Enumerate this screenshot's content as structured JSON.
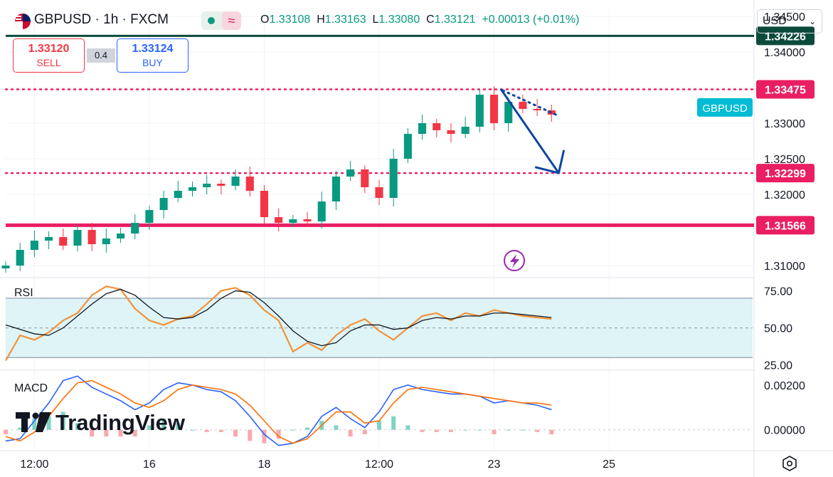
{
  "header": {
    "symbol_title": "GBPUSD · 1h · FXCM",
    "open_label": "O",
    "open": "1.33108",
    "high_label": "H",
    "high": "1.33163",
    "low_label": "L",
    "low": "1.33080",
    "close_label": "C",
    "close": "1.33121",
    "change": "+0.00013 (+0.01%)",
    "flag_icon": "uk-us-flag-icon",
    "market_status_icon": "market-open-dot-icon",
    "indicator_icon": "wave-icon"
  },
  "trade": {
    "sell_price": "1.33120",
    "sell_label": "SELL",
    "spread": "0.4",
    "buy_price": "1.33124",
    "buy_label": "BUY"
  },
  "currency": {
    "value": "USD",
    "icon": "chevron-down-icon"
  },
  "colors": {
    "up": "#089981",
    "down": "#f23645",
    "dark_line": "#0b4a3a",
    "resistance": "#e91e63",
    "arrow": "#0d47a1",
    "rsi_line": "#f0923a",
    "macd_line": "#2962ff",
    "signal_line": "#ff6d00",
    "symbol_tag": "#00bcd4"
  },
  "chart_data": [
    {
      "type": "candlestick",
      "title": "GBPUSD · 1h · FXCM",
      "x_ticks": [
        "12:00",
        "16",
        "18",
        "12:00",
        "23",
        "25"
      ],
      "x_range": [
        0,
        52
      ],
      "x_tick_positions": [
        2,
        10,
        18,
        26,
        34,
        42
      ],
      "ylim": [
        1.3088,
        1.3463
      ],
      "y_ticks": [
        "1.34500",
        "1.34000",
        "1.33500",
        "1.33000",
        "1.32500",
        "1.32000",
        "1.31500",
        "1.31000"
      ],
      "y_tick_values": [
        1.345,
        1.34,
        1.335,
        1.33,
        1.325,
        1.32,
        1.315,
        1.31
      ],
      "levels": [
        {
          "label": "1.34226",
          "value": 1.34226,
          "style": "solid-dark"
        },
        {
          "label": "1.33475",
          "value": 1.33475,
          "style": "dotted"
        },
        {
          "label": "1.32299",
          "value": 1.32299,
          "style": "dotted"
        },
        {
          "label": "1.31566",
          "value": 1.31566,
          "style": "solid-thick"
        }
      ],
      "symbol_tag": {
        "label": "GBPUSD",
        "value": 1.33121
      },
      "close_series": [
        1.31,
        1.3122,
        1.3135,
        1.314,
        1.3128,
        1.315,
        1.313,
        1.3138,
        1.3145,
        1.316,
        1.3178,
        1.3195,
        1.3205,
        1.321,
        1.3215,
        1.3212,
        1.3225,
        1.3205,
        1.3168,
        1.316,
        1.3165,
        1.3162,
        1.319,
        1.3225,
        1.3235,
        1.321,
        1.3195,
        1.325,
        1.3285,
        1.33,
        1.329,
        1.3285,
        1.3295,
        1.334,
        1.33,
        1.333,
        1.332,
        1.3318,
        1.3312
      ],
      "arrow": {
        "from": [
          34.5,
          1.3347
        ],
        "to": [
          38.5,
          1.323
        ]
      },
      "extra_icon": "lightning-icon"
    },
    {
      "type": "line",
      "title": "RSI",
      "y_ticks": [
        "75.00",
        "50.00",
        "25.00"
      ],
      "y_tick_values": [
        75,
        50,
        25
      ],
      "band": [
        30,
        70
      ],
      "ylim": [
        22,
        80
      ],
      "series": [
        {
          "values": [
            28,
            45,
            42,
            47,
            55,
            60,
            72,
            78,
            76,
            63,
            55,
            52,
            56,
            58,
            66,
            75,
            77,
            72,
            62,
            55,
            34,
            40,
            35,
            45,
            52,
            56,
            48,
            42,
            50,
            58,
            60,
            55,
            60,
            58,
            62,
            60,
            58,
            57,
            56
          ]
        },
        {
          "values": [
            52,
            49,
            46,
            45,
            50,
            58,
            66,
            73,
            76,
            72,
            64,
            57,
            56,
            57,
            62,
            70,
            75,
            74,
            67,
            58,
            48,
            41,
            38,
            40,
            48,
            52,
            52,
            49,
            50,
            55,
            57,
            56,
            58,
            58,
            60,
            60,
            59,
            58,
            57
          ]
        }
      ]
    },
    {
      "type": "line",
      "title": "MACD",
      "y_ticks": [
        "0.00200",
        "0.00000"
      ],
      "y_tick_values": [
        0.002,
        0.0
      ],
      "ylim": [
        -0.0009,
        0.0026
      ],
      "series": [
        {
          "values": [
            -0.0005,
            -0.0004,
            0.0004,
            0.0012,
            0.0022,
            0.0024,
            0.0019,
            0.0016,
            0.0013,
            0.0009,
            0.0012,
            0.0018,
            0.0021,
            0.002,
            0.0018,
            0.0017,
            0.0013,
            0.0006,
            -0.0002,
            -0.0007,
            -0.0006,
            -0.0003,
            0.0006,
            0.001,
            0.0005,
            0.0001,
            0.0008,
            0.0018,
            0.002,
            0.0018,
            0.0017,
            0.0016,
            0.0016,
            0.0015,
            0.0012,
            0.0013,
            0.0012,
            0.0011,
            0.0009
          ]
        },
        {
          "values": [
            -0.0003,
            -0.0005,
            -0.0001,
            0.0006,
            0.0014,
            0.0021,
            0.0022,
            0.0019,
            0.0016,
            0.0012,
            0.001,
            0.0013,
            0.0018,
            0.002,
            0.0019,
            0.0018,
            0.0016,
            0.0011,
            0.0004,
            -0.0003,
            -0.0006,
            -0.0004,
            0.0002,
            0.0008,
            0.0008,
            0.0003,
            0.0004,
            0.0012,
            0.0018,
            0.0019,
            0.0018,
            0.0017,
            0.0016,
            0.0015,
            0.0014,
            0.0013,
            0.0012,
            0.0012,
            0.0011
          ]
        }
      ]
    }
  ],
  "branding": {
    "logo": "TradingView"
  },
  "settings_icon": "settings-hexagon-icon"
}
